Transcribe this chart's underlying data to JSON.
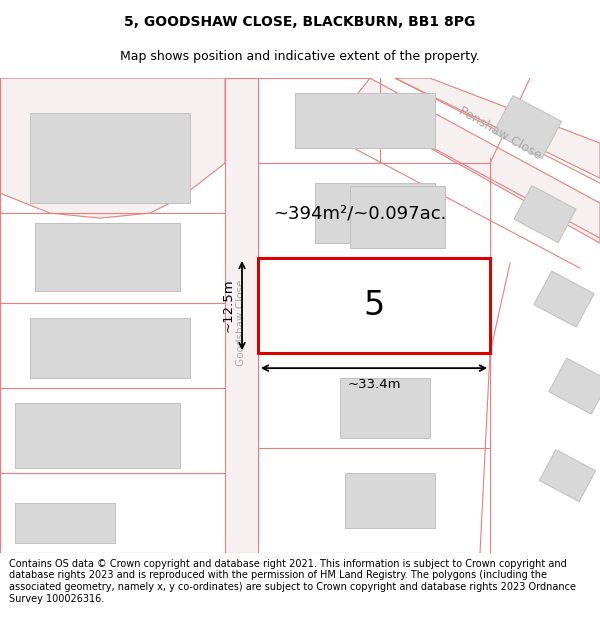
{
  "title_line1": "5, GOODSHAW CLOSE, BLACKBURN, BB1 8PG",
  "title_line2": "Map shows position and indicative extent of the property.",
  "footer_text": "Contains OS data © Crown copyright and database right 2021. This information is subject to Crown copyright and database rights 2023 and is reproduced with the permission of HM Land Registry. The polygons (including the associated geometry, namely x, y co-ordinates) are subject to Crown copyright and database rights 2023 Ordnance Survey 100026316.",
  "area_text": "~394m²/~0.097ac.",
  "width_label": "~33.4m",
  "height_label": "~12.5m",
  "plot_number": "5",
  "street_label": "Goodshaw Close",
  "road_label": "Penshaw Close",
  "bg_color": "#ffffff",
  "road_fill": "#f7f0f0",
  "plot_highlight_color": "#dd0000",
  "road_line_color": "#e88080",
  "building_fill": "#d8d8d8",
  "building_edge": "#c0c0c0",
  "title_fontsize": 10,
  "subtitle_fontsize": 9,
  "footer_fontsize": 7
}
